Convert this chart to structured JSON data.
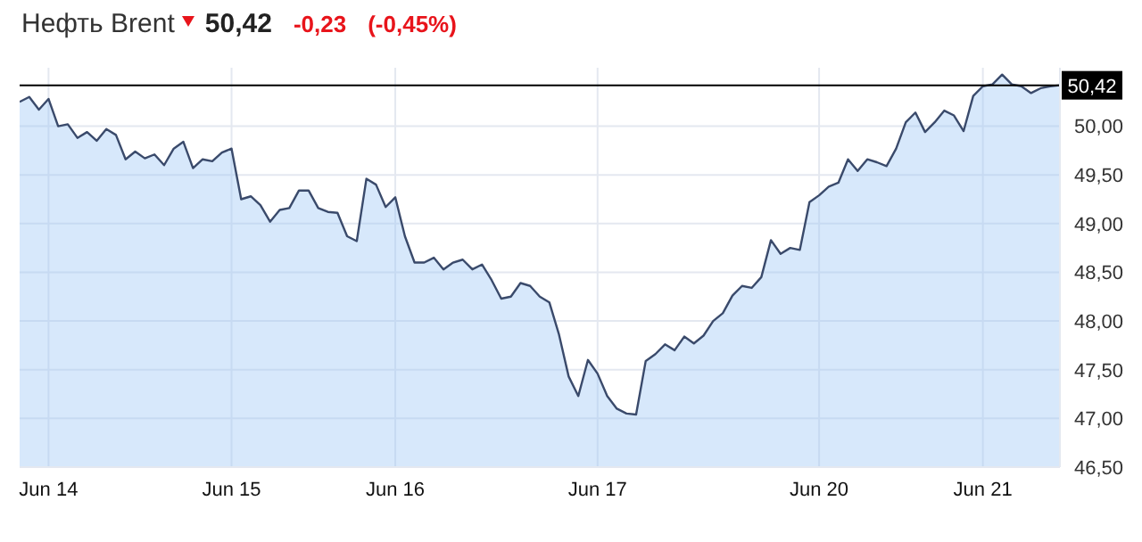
{
  "chart_data": {
    "type": "area",
    "title": "Нефть Brent",
    "annotations": [
      "50,42",
      "-0,23",
      "(-0,45%)"
    ],
    "categories": [
      null,
      null,
      null,
      "Jun 14",
      null,
      null,
      null,
      null,
      null,
      null,
      null,
      null,
      null,
      null,
      null,
      null,
      null,
      null,
      null,
      null,
      null,
      null,
      "Jun 15",
      null,
      null,
      null,
      null,
      null,
      null,
      null,
      null,
      null,
      null,
      null,
      null,
      null,
      null,
      null,
      null,
      "Jun 16",
      null,
      null,
      null,
      null,
      null,
      null,
      null,
      null,
      null,
      null,
      null,
      null,
      null,
      null,
      null,
      null,
      null,
      null,
      null,
      null,
      "Jun 17",
      null,
      null,
      null,
      null,
      null,
      null,
      null,
      null,
      null,
      null,
      null,
      null,
      null,
      null,
      null,
      null,
      null,
      null,
      null,
      null,
      null,
      null,
      "Jun 20",
      null,
      null,
      null,
      null,
      null,
      null,
      null,
      null,
      null,
      null,
      null,
      null,
      null,
      null,
      null,
      null,
      "Jun 21",
      null,
      null,
      null,
      null,
      null,
      null,
      null,
      null
    ],
    "series": [
      {
        "color": "#3a4a6b",
        "values": [
          50.25,
          50.3,
          50.17,
          50.28,
          50.0,
          50.02,
          49.88,
          49.94,
          49.85,
          49.97,
          49.91,
          49.66,
          49.74,
          49.67,
          49.71,
          49.6,
          49.77,
          49.84,
          49.57,
          49.66,
          49.64,
          49.73,
          49.77,
          49.25,
          49.28,
          49.19,
          49.02,
          49.14,
          49.16,
          49.34,
          49.34,
          49.16,
          49.12,
          49.11,
          48.87,
          48.82,
          49.46,
          49.4,
          49.17,
          49.27,
          48.87,
          48.6,
          48.6,
          48.65,
          48.53,
          48.6,
          48.63,
          48.53,
          48.58,
          48.42,
          48.23,
          48.25,
          48.39,
          48.36,
          48.25,
          48.19,
          47.86,
          47.43,
          47.23,
          47.6,
          47.46,
          47.23,
          47.1,
          47.05,
          47.04,
          47.59,
          47.66,
          47.76,
          47.7,
          47.84,
          47.77,
          47.85,
          48.0,
          48.08,
          48.26,
          48.36,
          48.34,
          48.45,
          48.83,
          48.69,
          48.75,
          48.73,
          49.22,
          49.29,
          49.38,
          49.42,
          49.66,
          49.54,
          49.66,
          49.63,
          49.59,
          49.77,
          50.04,
          50.14,
          49.94,
          50.04,
          50.16,
          50.11,
          49.95,
          50.31,
          50.41,
          50.43,
          50.53,
          50.43,
          50.41,
          50.34,
          50.39,
          50.41,
          50.42
        ]
      }
    ],
    "ylim": [
      46.5,
      50.6
    ],
    "yticks": [
      {
        "value": 46.5,
        "label": "46,50"
      },
      {
        "value": 47,
        "label": "47,00"
      },
      {
        "value": 47.5,
        "label": "47,50"
      },
      {
        "value": 48,
        "label": "48,00"
      },
      {
        "value": 48.5,
        "label": "48,50"
      },
      {
        "value": 49,
        "label": "49,00"
      },
      {
        "value": 49.5,
        "label": "49,50"
      },
      {
        "value": 50,
        "label": "50,00"
      }
    ],
    "ref_lines": [
      {
        "axis": "y",
        "value": 50.42,
        "label": "50,42",
        "color": "#000000"
      }
    ],
    "grid": true,
    "marker": "none",
    "line_style": "solid"
  }
}
